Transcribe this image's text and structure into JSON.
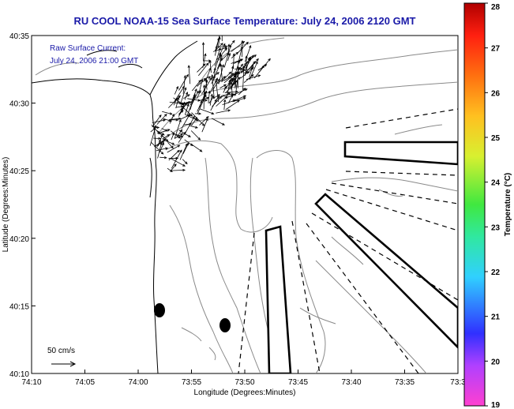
{
  "title": "RU COOL  NOAA-15  Sea Surface Temperature:  July 24, 2006 2120 GMT",
  "annotation": {
    "line1": "Raw Surface Current:",
    "line2": "July 24, 2006 21:00 GMT",
    "scale_label": "50 cm/s"
  },
  "axes": {
    "xlabel": "Longitude (Degrees:Minutes)",
    "ylabel": "Latitude (Degrees:Minutes)",
    "xticks": [
      "74:10",
      "74:05",
      "74:00",
      "73:55",
      "73:50",
      "73:45",
      "73:40",
      "73:35",
      "73:3"
    ],
    "yticks": [
      "40:35",
      "40:30",
      "40:25",
      "40:20",
      "40:15",
      "40:10"
    ]
  },
  "colorbar": {
    "label": "Temperature (°C)",
    "min": 19,
    "max": 28,
    "ticks": [
      "28",
      "27",
      "26",
      "25",
      "24",
      "23",
      "22",
      "21",
      "20",
      "19"
    ]
  },
  "colors": {
    "title": "#1a1aa8",
    "annotation": "#1a1aa8",
    "contour": "#8a8a8a",
    "vectors": "#000000"
  }
}
